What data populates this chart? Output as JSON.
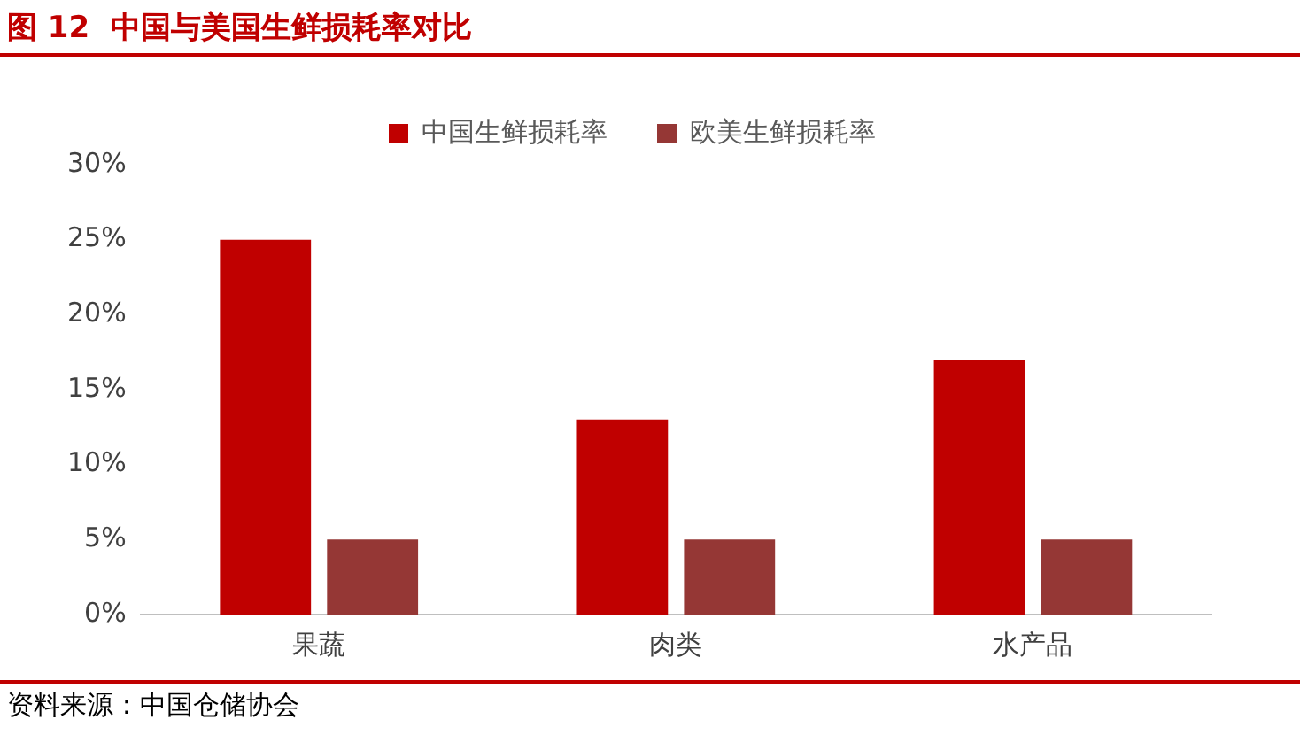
{
  "chart_data": {
    "type": "bar",
    "title": "图 12  中国与美国生鲜损耗率对比",
    "categories": [
      "果蔬",
      "肉类",
      "水产品"
    ],
    "series": [
      {
        "name": "中国生鲜损耗率",
        "color": "#c00000",
        "values": [
          25,
          13,
          17
        ]
      },
      {
        "name": "欧美生鲜损耗率",
        "color": "#953735",
        "values": [
          5,
          5,
          5
        ]
      }
    ],
    "ylim": [
      0,
      30
    ],
    "yticks": [
      {
        "value": 0,
        "label": "0%"
      },
      {
        "value": 5,
        "label": "5%"
      },
      {
        "value": 10,
        "label": "10%"
      },
      {
        "value": 15,
        "label": "15%"
      },
      {
        "value": 20,
        "label": "20%"
      },
      {
        "value": 25,
        "label": "25%"
      },
      {
        "value": 30,
        "label": "30%"
      }
    ],
    "grid": false,
    "legend": "top",
    "annotations": [
      "资料来源：中国仓储协会"
    ]
  }
}
